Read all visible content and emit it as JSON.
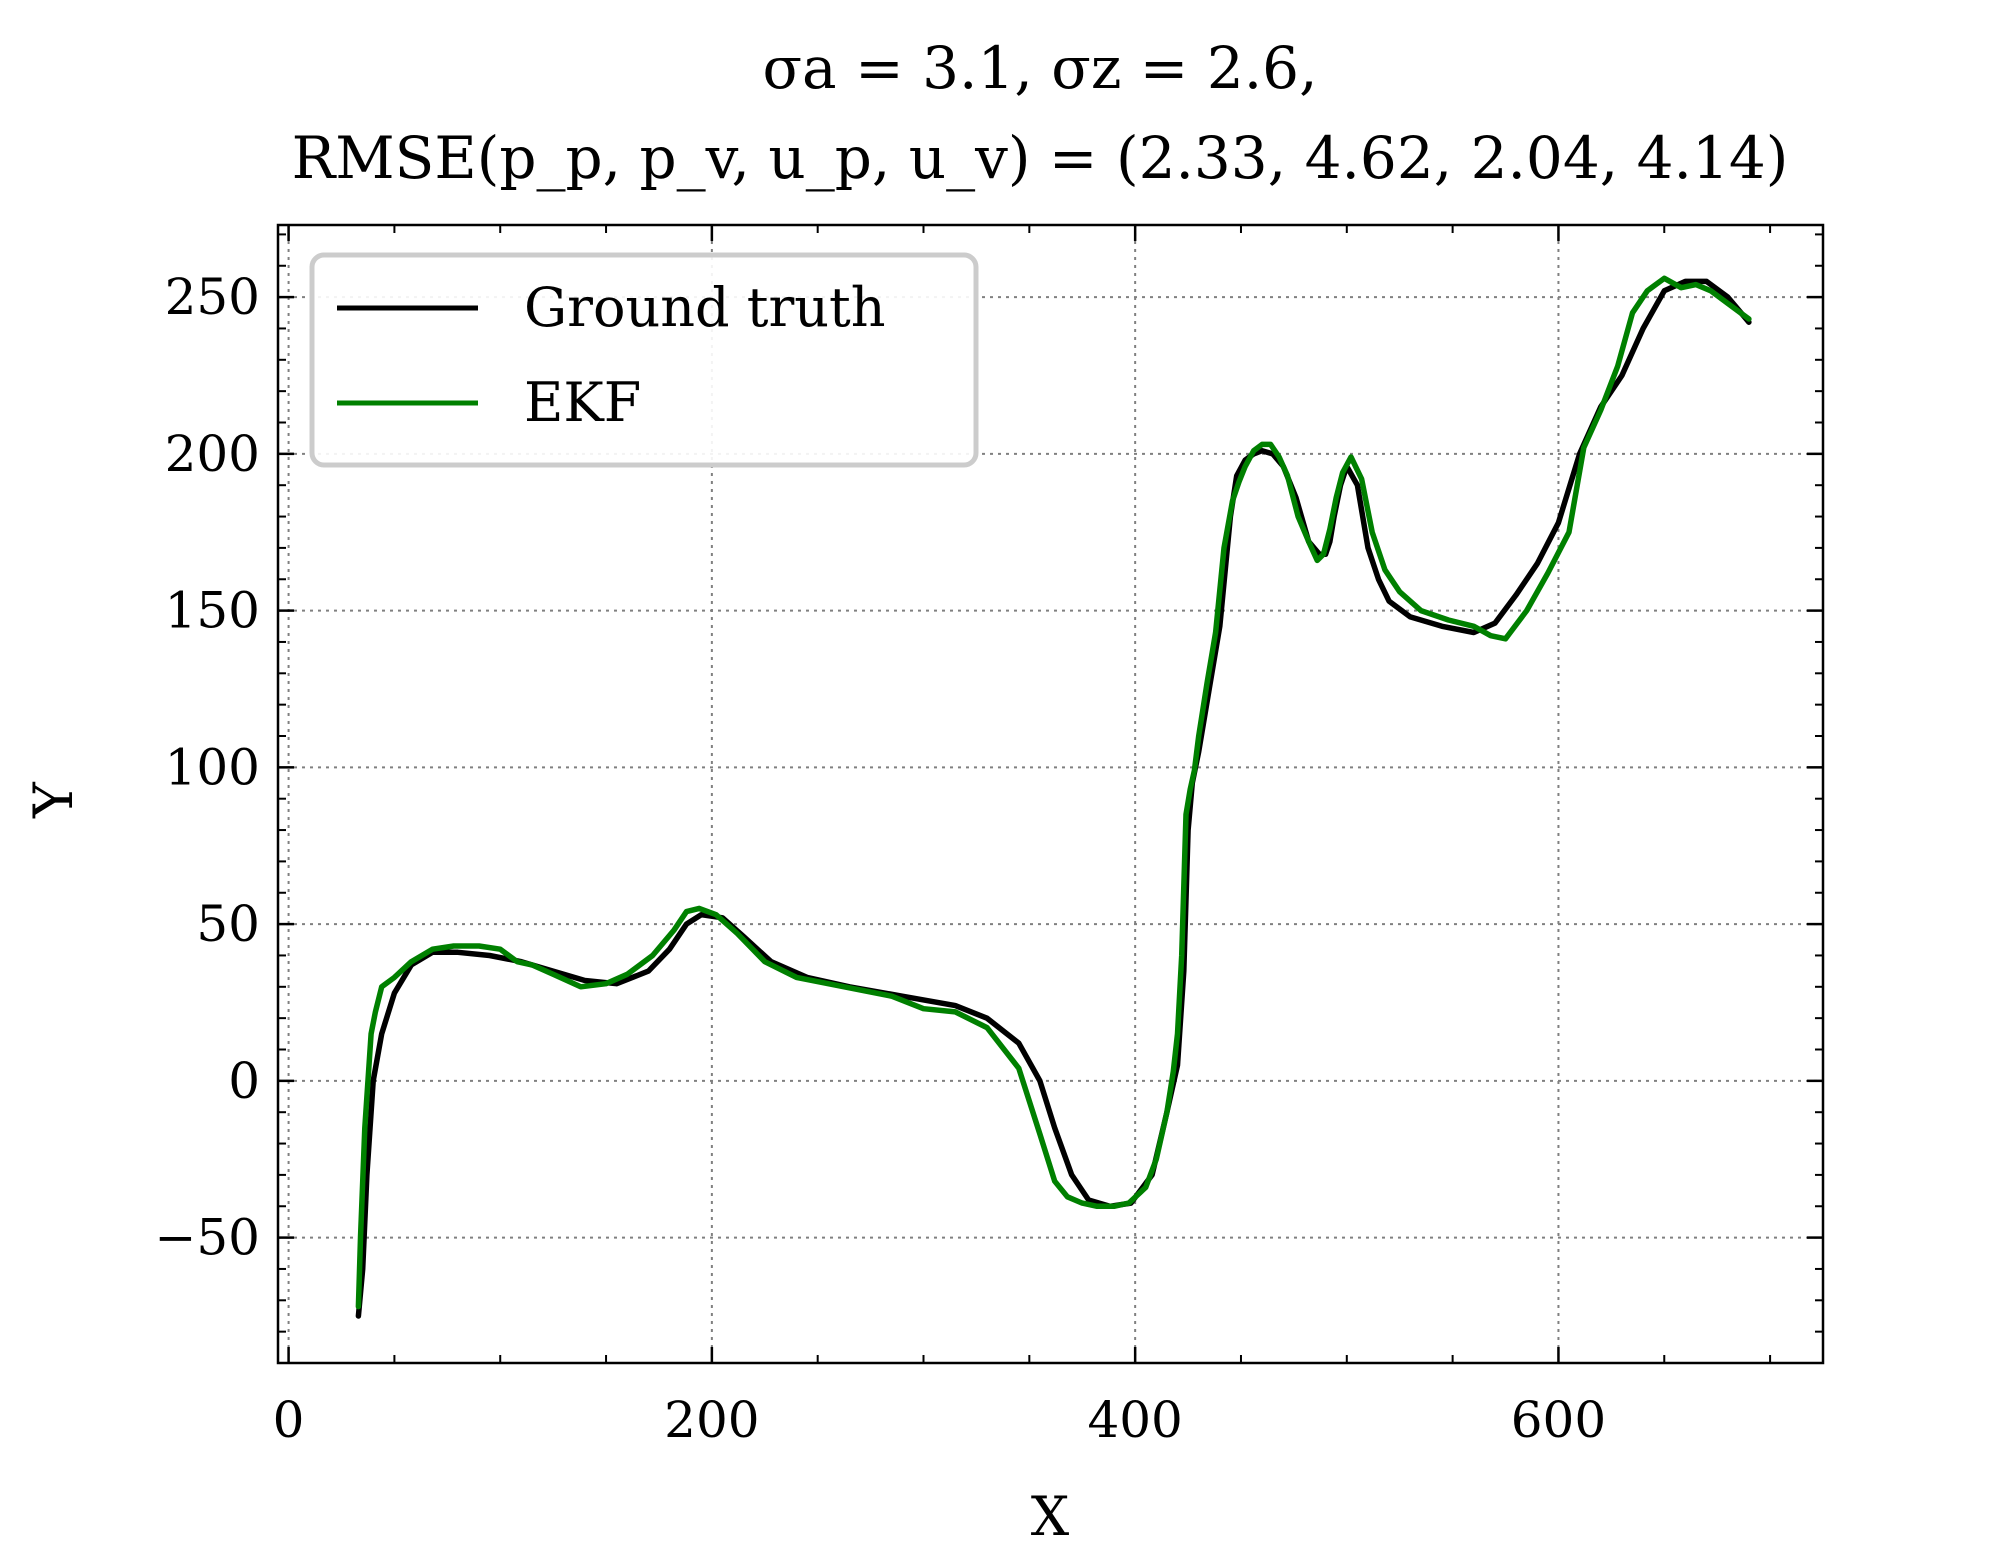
{
  "chart_data": {
    "type": "line",
    "title_lines": [
      "σa = 3.1, σz = 2.6,",
      "RMSE(p_p, p_v, u_p, u_v) = (2.33, 4.62, 2.04, 4.14)"
    ],
    "xlabel": "X",
    "ylabel": "Y",
    "xlim": [
      -5,
      725
    ],
    "ylim": [
      -90,
      273
    ],
    "xticks": [
      0,
      200,
      400,
      600
    ],
    "yticks": [
      -50,
      0,
      50,
      100,
      150,
      200,
      250
    ],
    "xtick_labels": [
      "0",
      "200",
      "400",
      "600"
    ],
    "ytick_labels": [
      "−50",
      "0",
      "50",
      "100",
      "150",
      "200",
      "250"
    ],
    "grid": true,
    "legend_position": "top-left",
    "series": [
      {
        "name": "Ground truth",
        "color": "#000000",
        "x": [
          33,
          35,
          37,
          40,
          44,
          50,
          58,
          68,
          80,
          95,
          110,
          125,
          140,
          155,
          170,
          180,
          188,
          195,
          205,
          215,
          228,
          245,
          265,
          290,
          315,
          330,
          345,
          355,
          362,
          370,
          378,
          388,
          398,
          408,
          415,
          420,
          423,
          425,
          427,
          430,
          435,
          440,
          445,
          448,
          452,
          456,
          460,
          465,
          470,
          476,
          482,
          487,
          490,
          492,
          494,
          497,
          500,
          505,
          510,
          515,
          520,
          530,
          545,
          560,
          570,
          580,
          590,
          600,
          610,
          620,
          630,
          640,
          650,
          660,
          670,
          680,
          690
        ],
        "y": [
          -75,
          -60,
          -30,
          0,
          15,
          28,
          37,
          41,
          41,
          40,
          38,
          35,
          32,
          31,
          35,
          42,
          50,
          53,
          52,
          46,
          38,
          33,
          30,
          27,
          24,
          20,
          12,
          0,
          -15,
          -30,
          -38,
          -40,
          -39,
          -30,
          -10,
          5,
          35,
          80,
          95,
          105,
          125,
          145,
          180,
          193,
          198,
          200,
          201,
          200,
          196,
          186,
          172,
          168,
          168,
          172,
          180,
          190,
          196,
          190,
          170,
          160,
          153,
          148,
          145,
          143,
          146,
          155,
          165,
          178,
          200,
          215,
          225,
          240,
          252,
          255,
          255,
          250,
          242
        ]
      },
      {
        "name": "EKF",
        "color": "#008000",
        "x": [
          33,
          34,
          36,
          38,
          39,
          41,
          44,
          50,
          58,
          68,
          78,
          90,
          100,
          108,
          115,
          125,
          138,
          150,
          160,
          172,
          182,
          188,
          194,
          202,
          212,
          225,
          240,
          255,
          270,
          285,
          300,
          315,
          330,
          345,
          355,
          362,
          368,
          375,
          382,
          390,
          397,
          405,
          410,
          415,
          418,
          420,
          422,
          424,
          426,
          428,
          430,
          434,
          438,
          442,
          446,
          449,
          452,
          456,
          460,
          464,
          468,
          472,
          477,
          482,
          486,
          489,
          492,
          495,
          498,
          502,
          507,
          512,
          518,
          525,
          535,
          548,
          560,
          568,
          575,
          585,
          595,
          605,
          612,
          620,
          628,
          635,
          642,
          650,
          658,
          665,
          672,
          680,
          690
        ],
        "y": [
          -72,
          -50,
          -15,
          5,
          15,
          22,
          30,
          33,
          38,
          42,
          43,
          43,
          42,
          38,
          37,
          34,
          30,
          31,
          34,
          40,
          48,
          54,
          55,
          53,
          47,
          38,
          33,
          31,
          29,
          27,
          23,
          22,
          17,
          4,
          -17,
          -32,
          -37,
          -39,
          -40,
          -40,
          -39,
          -34,
          -25,
          -10,
          3,
          15,
          40,
          85,
          93,
          99,
          110,
          127,
          143,
          170,
          185,
          191,
          196,
          201,
          203,
          203,
          199,
          193,
          180,
          172,
          166,
          168,
          176,
          186,
          194,
          199,
          192,
          175,
          163,
          156,
          150,
          147,
          145,
          142,
          141,
          150,
          162,
          175,
          202,
          214,
          228,
          245,
          252,
          256,
          253,
          254,
          252,
          248,
          243
        ]
      }
    ]
  }
}
